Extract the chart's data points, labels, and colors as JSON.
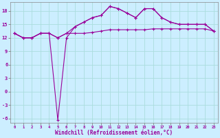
{
  "xlabel": "Windchill (Refroidissement éolien,°C)",
  "x": [
    0,
    1,
    2,
    3,
    4,
    5,
    6,
    7,
    8,
    9,
    10,
    11,
    12,
    13,
    14,
    15,
    16,
    17,
    18,
    19,
    20,
    21,
    22,
    23
  ],
  "line1": [
    13,
    12,
    12,
    13,
    13,
    12,
    13,
    13,
    13,
    13.2,
    13.5,
    13.8,
    13.8,
    13.8,
    13.8,
    13.8,
    14,
    14,
    14,
    14,
    14,
    14,
    14,
    13.5
  ],
  "line2": [
    13,
    12,
    12,
    13,
    13,
    12,
    13,
    14.5,
    15.5,
    16.5,
    17,
    19,
    18.5,
    17.5,
    16.5,
    18.5,
    18.5,
    16.5,
    15.5,
    15,
    15,
    15,
    15,
    13.5
  ],
  "line3": [
    13,
    12,
    12,
    13,
    13,
    -6.3,
    12,
    14.5,
    15.5,
    16.5,
    17,
    19,
    18.5,
    17.5,
    16.5,
    18.5,
    18.5,
    16.5,
    15.5,
    15,
    15,
    15,
    15,
    13.5
  ],
  "ylim": [
    -7,
    20
  ],
  "yticks": [
    -6,
    -3,
    0,
    3,
    6,
    9,
    12,
    15,
    18
  ],
  "bg_color": "#cceeff",
  "line_color": "#990099",
  "grid_color": "#aadddd"
}
